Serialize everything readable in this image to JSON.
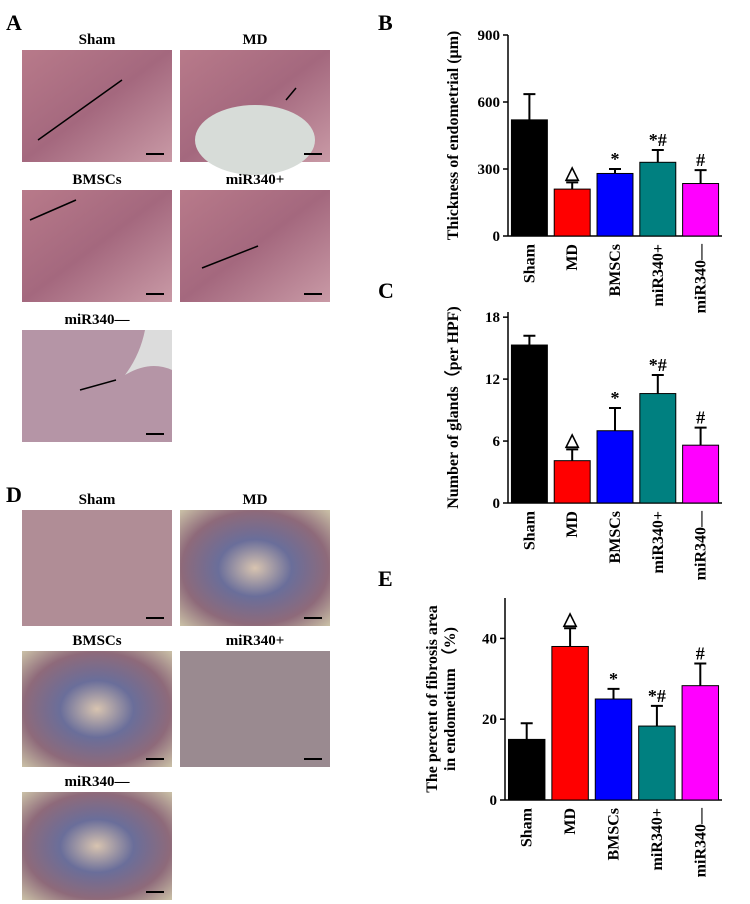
{
  "figure": {
    "panel_labels": [
      "A",
      "B",
      "C",
      "D",
      "E"
    ],
    "panel_A": {
      "labels": [
        "Sham",
        "MD",
        "BMSCs",
        "miR340+",
        "miR340—"
      ]
    },
    "panel_D": {
      "labels": [
        "Sham",
        "MD",
        "BMSCs",
        "miR340+",
        "miR340—"
      ]
    }
  },
  "chart_data": [
    {
      "type": "bar",
      "ylabel": "Thickness of endometrial (μm)",
      "categories": [
        "Sham",
        "MD",
        "BMSCs",
        "miR340+",
        "miR340—"
      ],
      "values": [
        520,
        210,
        280,
        330,
        235
      ],
      "errors": [
        115,
        30,
        20,
        55,
        60
      ],
      "annotations": [
        null,
        "△",
        "*",
        "*#",
        "#"
      ],
      "colors": [
        "#000000",
        "#ff0000",
        "#0000ff",
        "#008080",
        "#ff00ff"
      ],
      "ylim": [
        0,
        900
      ],
      "yticks": [
        0,
        300,
        600,
        900
      ]
    },
    {
      "type": "bar",
      "ylabel": "Number of glands（per HPF)",
      "categories": [
        "Sham",
        "MD",
        "BMSCs",
        "miR340+",
        "miR340—"
      ],
      "values": [
        15.3,
        4.1,
        7.0,
        10.6,
        5.6
      ],
      "errors": [
        0.9,
        1.1,
        2.2,
        1.8,
        1.7
      ],
      "annotations": [
        null,
        "△",
        "*",
        "*#",
        "#"
      ],
      "colors": [
        "#000000",
        "#ff0000",
        "#0000ff",
        "#008080",
        "#ff00ff"
      ],
      "ylim": [
        0,
        18.5
      ],
      "yticks": [
        0,
        6,
        12,
        18
      ]
    },
    {
      "type": "bar",
      "ylabel": [
        "The percent of fibrosis area",
        "in endometium （%)"
      ],
      "categories": [
        "Sham",
        "MD",
        "BMSCs",
        "miR340+",
        "miR340—"
      ],
      "values": [
        15,
        38,
        25,
        18.3,
        28.3
      ],
      "errors": [
        4,
        4.5,
        2.5,
        5,
        5.5
      ],
      "annotations": [
        null,
        "△",
        "*",
        "*#",
        "#"
      ],
      "colors": [
        "#000000",
        "#ff0000",
        "#0000ff",
        "#008080",
        "#ff00ff"
      ],
      "ylim": [
        0,
        50
      ],
      "yticks": [
        0,
        20,
        40
      ]
    }
  ]
}
